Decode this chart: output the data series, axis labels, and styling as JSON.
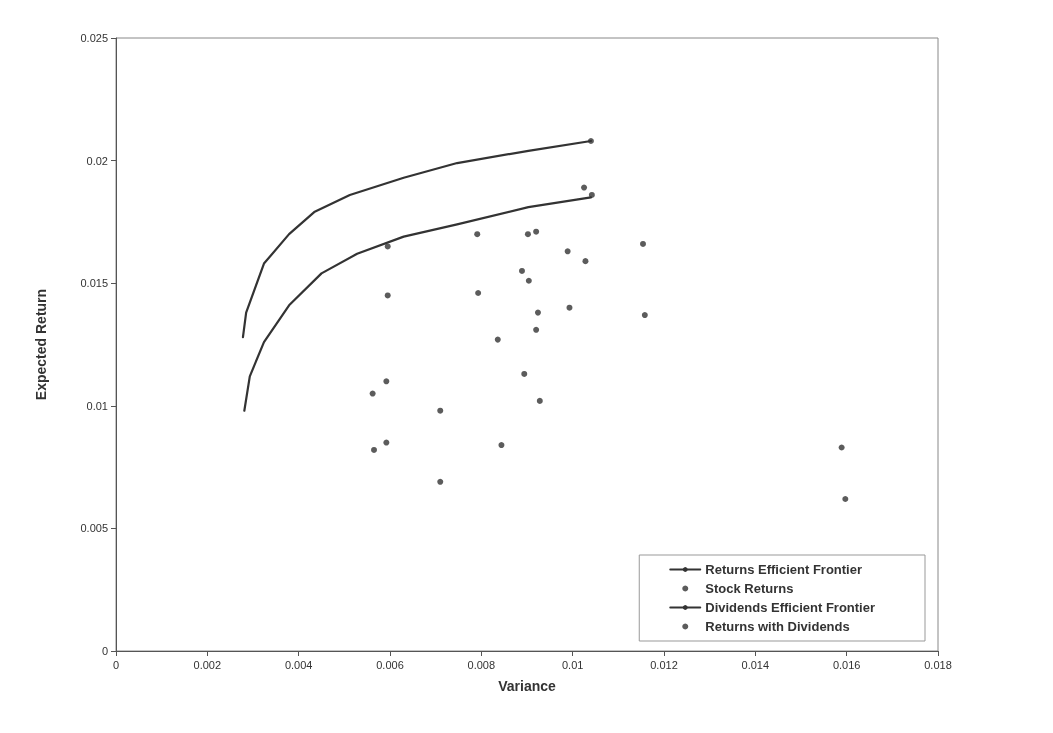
{
  "chart_data": {
    "type": "scatter",
    "xlabel": "Variance",
    "ylabel": "Expected Return",
    "xlim": [
      0,
      0.018
    ],
    "xticks": [
      0,
      0.002,
      0.004,
      0.006,
      0.008,
      0.01,
      0.012,
      0.014,
      0.016,
      0.018
    ],
    "ylim": [
      0,
      0.025
    ],
    "yticks": [
      0,
      0.005,
      0.01,
      0.015,
      0.02,
      0.025
    ],
    "grid": false,
    "legend": "bottom right",
    "series": [
      {
        "name": "Returns Efficient Frontier",
        "type": "line",
        "color": "#333333",
        "marker": "none",
        "line_style": "solid",
        "x": [
          0.00281,
          0.00293,
          0.00324,
          0.00379,
          0.0045,
          0.00528,
          0.0063,
          0.00747,
          0.00903,
          0.0104
        ],
        "values": [
          0.0098,
          0.0112,
          0.0126,
          0.0141,
          0.0154,
          0.0162,
          0.0169,
          0.0174,
          0.0181,
          0.0185
        ]
      },
      {
        "name": "Stock Returns",
        "type": "scatter",
        "color": "#333333",
        "marker": "circle",
        "x": [
          0.00565,
          0.00595,
          0.00592,
          0.0071,
          0.00793,
          0.00844,
          0.00904,
          0.0092,
          0.00894,
          0.00928,
          0.00993,
          0.01028,
          0.01042,
          0.01158,
          0.01597
        ],
        "values": [
          0.0082,
          0.0145,
          0.0085,
          0.0069,
          0.0146,
          0.0084,
          0.0151,
          0.0131,
          0.0113,
          0.0102,
          0.014,
          0.0159,
          0.0186,
          0.0137,
          0.0062
        ]
      },
      {
        "name": "Dividends Efficient Frontier",
        "type": "line",
        "color": "#333333",
        "marker": "none",
        "line_style": "solid",
        "x": [
          0.00278,
          0.00285,
          0.00324,
          0.00379,
          0.00434,
          0.00512,
          0.0063,
          0.00747,
          0.00903,
          0.0104
        ],
        "values": [
          0.0128,
          0.0138,
          0.0158,
          0.017,
          0.0179,
          0.0186,
          0.0193,
          0.0199,
          0.0204,
          0.0208
        ]
      },
      {
        "name": "Returns with Dividends",
        "type": "scatter",
        "color": "#333333",
        "marker": "circle",
        "x": [
          0.00562,
          0.00595,
          0.00592,
          0.0071,
          0.00791,
          0.00836,
          0.00902,
          0.0092,
          0.00889,
          0.00924,
          0.00989,
          0.01025,
          0.0104,
          0.01154,
          0.01589
        ],
        "values": [
          0.0105,
          0.0165,
          0.011,
          0.0098,
          0.017,
          0.0127,
          0.017,
          0.0171,
          0.0155,
          0.0138,
          0.0163,
          0.0189,
          0.0208,
          0.0166,
          0.0083
        ]
      }
    ]
  }
}
